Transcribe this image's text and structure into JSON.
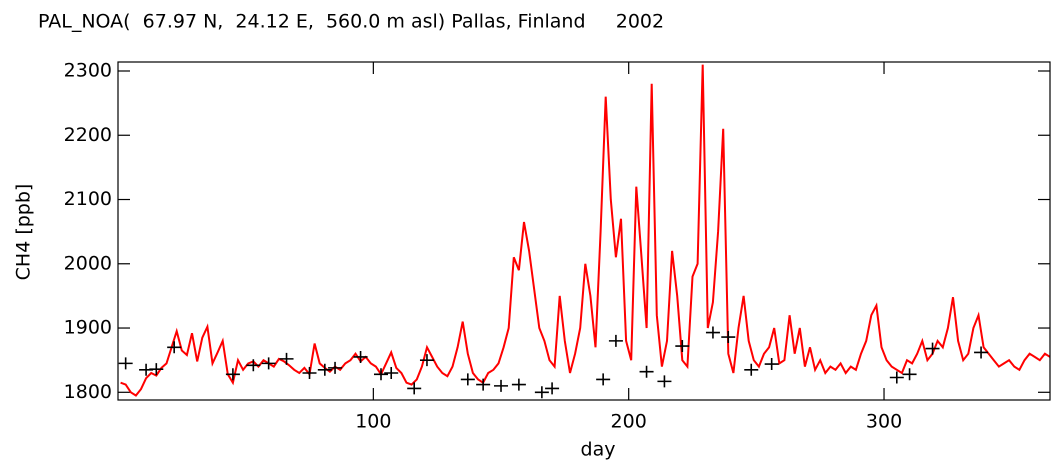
{
  "chart_data": {
    "type": "line",
    "title": "PAL_NOA(  67.97 N,  24.12 E,  560.0 m asl) Pallas, Finland     2002",
    "x_label": "day",
    "y_label": "CH4 [ppb]",
    "xlim": [
      0,
      365
    ],
    "xticks": [
      100,
      200,
      300
    ],
    "ylim": [
      1788,
      2314
    ],
    "yticks": [
      1800,
      1900,
      2000,
      2100,
      2200,
      2300
    ],
    "series": [
      {
        "type": "line",
        "color": "#ff0000",
        "x": [
          1,
          3,
          5,
          7,
          9,
          11,
          13,
          15,
          17,
          19,
          21,
          23,
          25,
          27,
          29,
          31,
          33,
          35,
          37,
          39,
          41,
          43,
          45,
          47,
          49,
          51,
          53,
          55,
          57,
          59,
          61,
          63,
          65,
          67,
          69,
          71,
          73,
          75,
          77,
          79,
          81,
          83,
          85,
          87,
          89,
          91,
          93,
          95,
          97,
          99,
          101,
          103,
          105,
          107,
          109,
          111,
          113,
          115,
          117,
          119,
          121,
          123,
          125,
          127,
          129,
          131,
          133,
          135,
          137,
          139,
          141,
          143,
          145,
          147,
          149,
          151,
          153,
          155,
          157,
          159,
          161,
          163,
          165,
          167,
          169,
          171,
          173,
          175,
          177,
          179,
          181,
          183,
          185,
          187,
          189,
          191,
          193,
          195,
          197,
          199,
          201,
          203,
          205,
          207,
          209,
          211,
          213,
          215,
          217,
          219,
          221,
          223,
          225,
          227,
          229,
          231,
          233,
          235,
          237,
          239,
          241,
          243,
          245,
          247,
          249,
          251,
          253,
          255,
          257,
          259,
          261,
          263,
          265,
          267,
          269,
          271,
          273,
          275,
          277,
          279,
          281,
          283,
          285,
          287,
          289,
          291,
          293,
          295,
          297,
          299,
          301,
          303,
          305,
          307,
          309,
          311,
          313,
          315,
          317,
          319,
          321,
          323,
          325,
          327,
          329,
          331,
          333,
          335,
          337,
          339,
          341,
          343,
          345,
          347,
          349,
          351,
          353,
          355,
          357,
          359,
          361,
          363,
          365
        ],
        "values": [
          1815,
          1812,
          1800,
          1795,
          1805,
          1822,
          1830,
          1826,
          1838,
          1845,
          1870,
          1895,
          1865,
          1858,
          1892,
          1848,
          1885,
          1902,
          1845,
          1862,
          1880,
          1828,
          1815,
          1850,
          1835,
          1845,
          1848,
          1840,
          1850,
          1845,
          1840,
          1852,
          1848,
          1842,
          1835,
          1830,
          1838,
          1828,
          1876,
          1845,
          1838,
          1832,
          1840,
          1835,
          1845,
          1850,
          1860,
          1848,
          1855,
          1845,
          1840,
          1828,
          1845,
          1862,
          1838,
          1830,
          1815,
          1812,
          1820,
          1840,
          1870,
          1855,
          1840,
          1830,
          1825,
          1840,
          1870,
          1910,
          1860,
          1830,
          1820,
          1815,
          1830,
          1835,
          1845,
          1870,
          1900,
          2010,
          1990,
          2065,
          2020,
          1960,
          1900,
          1880,
          1850,
          1840,
          1950,
          1880,
          1830,
          1860,
          1900,
          2000,
          1950,
          1870,
          2050,
          2260,
          2100,
          2010,
          2070,
          1880,
          1850,
          2120,
          2010,
          1900,
          2280,
          1920,
          1840,
          1880,
          2020,
          1950,
          1850,
          1840,
          1980,
          2000,
          2310,
          1900,
          1940,
          2050,
          2210,
          1860,
          1830,
          1900,
          1950,
          1880,
          1850,
          1840,
          1860,
          1870,
          1900,
          1845,
          1850,
          1920,
          1860,
          1900,
          1840,
          1870,
          1835,
          1850,
          1830,
          1840,
          1835,
          1845,
          1830,
          1840,
          1835,
          1860,
          1880,
          1920,
          1935,
          1870,
          1850,
          1840,
          1835,
          1830,
          1850,
          1845,
          1860,
          1880,
          1850,
          1860,
          1880,
          1870,
          1900,
          1948,
          1880,
          1850,
          1860,
          1900,
          1920,
          1870,
          1860,
          1850,
          1840,
          1845,
          1850,
          1840,
          1835,
          1850,
          1860,
          1855,
          1850,
          1860,
          1855
        ]
      },
      {
        "type": "scatter",
        "color": "#000000",
        "x": [
          3,
          11,
          15,
          22,
          45,
          53,
          59,
          66,
          75,
          81,
          85,
          95,
          103,
          107,
          116,
          121,
          137,
          143,
          150,
          157,
          166,
          170,
          190,
          195,
          207,
          214,
          221,
          233,
          239,
          248,
          256,
          305,
          310,
          319,
          338
        ],
        "values": [
          1845,
          1835,
          1836,
          1870,
          1828,
          1842,
          1845,
          1852,
          1830,
          1835,
          1838,
          1855,
          1828,
          1830,
          1806,
          1850,
          1820,
          1812,
          1810,
          1812,
          1800,
          1806,
          1820,
          1880,
          1832,
          1817,
          1872,
          1893,
          1886,
          1835,
          1844,
          1823,
          1828,
          1868,
          1862
        ]
      }
    ]
  }
}
